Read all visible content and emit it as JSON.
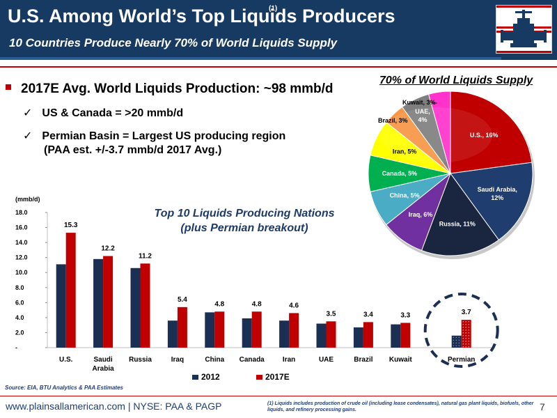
{
  "header": {
    "title": "U.S. Among World’s Top Liquids Producers",
    "title_superscript": "(1)",
    "subtitle": "10 Countries Produce Nearly 70% of World Liquids Supply"
  },
  "bullets": {
    "main": "2017E Avg. World Liquids Production: ~98 mmb/d",
    "sub1": "US & Canada =  >20 mmb/d",
    "sub2_line1": "Permian Basin = Largest US producing region",
    "sub2_line2": "(PAA est. +/-3.7 mmb/d 2017 Avg.)",
    "check_glyph": "✓"
  },
  "colors": {
    "brand_navy": "#173a63",
    "accent_red": "#c00000",
    "series_2012": "#1b2f52",
    "series_2017": "#c00000"
  },
  "chart_data": [
    {
      "type": "bar",
      "title": "Top 10 Liquids Producing Nations (plus Permian breakout)",
      "title_line1": "Top 10 Liquids Producing Nations",
      "title_line2": "(plus Permian breakout)",
      "ylabel": "(mmb/d)",
      "ylim": [
        0,
        18
      ],
      "yticks": [
        "-",
        "2.0",
        "4.0",
        "6.0",
        "8.0",
        "10.0",
        "12.0",
        "14.0",
        "16.0",
        "18.0"
      ],
      "categories": [
        "U.S.",
        "Saudi Arabia",
        "Russia",
        "Iraq",
        "China",
        "Canada",
        "Iran",
        "UAE",
        "Brazil",
        "Kuwait",
        "Permian"
      ],
      "category_label_lines": [
        [
          "U.S."
        ],
        [
          "Saudi",
          "Arabia"
        ],
        [
          "Russia"
        ],
        [
          "Iraq"
        ],
        [
          "China"
        ],
        [
          "Canada"
        ],
        [
          "Iran"
        ],
        [
          "UAE"
        ],
        [
          "Brazil"
        ],
        [
          "Kuwait"
        ],
        [
          "Permian"
        ]
      ],
      "series": [
        {
          "name": "2012",
          "values": [
            11.1,
            11.8,
            10.6,
            3.6,
            4.7,
            3.9,
            3.6,
            3.2,
            2.7,
            3.1,
            1.6
          ]
        },
        {
          "name": "2017E",
          "values": [
            15.3,
            12.2,
            11.2,
            5.4,
            4.8,
            4.8,
            4.6,
            3.5,
            3.4,
            3.3,
            3.7
          ]
        }
      ],
      "data_labels_2017E": [
        "15.3",
        "12.2",
        "11.2",
        "5.4",
        "4.8",
        "4.8",
        "4.6",
        "3.5",
        "3.4",
        "3.3",
        "3.7"
      ],
      "highlighted_category": "Permian",
      "legend": "bottom",
      "grid": false
    },
    {
      "type": "pie",
      "title": "70% of World Liquids Supply",
      "slices": [
        {
          "label": "U.S., 16%",
          "value": 16,
          "color": "#c00000",
          "label_color": "#ffffff"
        },
        {
          "label": "Saudi Arabia, 12%",
          "value": 12,
          "color": "#1f3d6e",
          "label_color": "#ffffff"
        },
        {
          "label": "Russia, 11%",
          "value": 11,
          "color": "#1a2540",
          "label_color": "#ffffff"
        },
        {
          "label": "Iraq, 6%",
          "value": 6,
          "color": "#7030a0",
          "label_color": "#ffffff"
        },
        {
          "label": "China, 5%",
          "value": 5,
          "color": "#4bacc6",
          "label_color": "#ffffff"
        },
        {
          "label": "Canada, 5%",
          "value": 5,
          "color": "#00b050",
          "label_color": "#ffffff"
        },
        {
          "label": "Iran, 5%",
          "value": 5,
          "color": "#ffff00",
          "label_color": "#000000"
        },
        {
          "label": "Brazil, 3%",
          "value": 3,
          "color": "#f79646",
          "label_color": "#000000"
        },
        {
          "label": "UAE, 4%",
          "value": 4,
          "color": "#7f7f7f",
          "label_color": "#ffffff"
        },
        {
          "label": "Kuwait, 3%",
          "value": 3,
          "color": "#ff33cc",
          "label_color": "#000000"
        }
      ]
    }
  ],
  "source": "Source: EIA, BTU Analytics & PAA Estimates",
  "footer": {
    "website": "www.plainsallamerican.com",
    "ticker": "NYSE: PAA & PAGP",
    "footnote": "(1) Liquids includes production of crude oil (including lease condensates), natural gas plant liquids, biofuels, other liquids, and refinery processing gains.",
    "page_number": "7"
  },
  "logo": {
    "icon": "valve-icon"
  }
}
